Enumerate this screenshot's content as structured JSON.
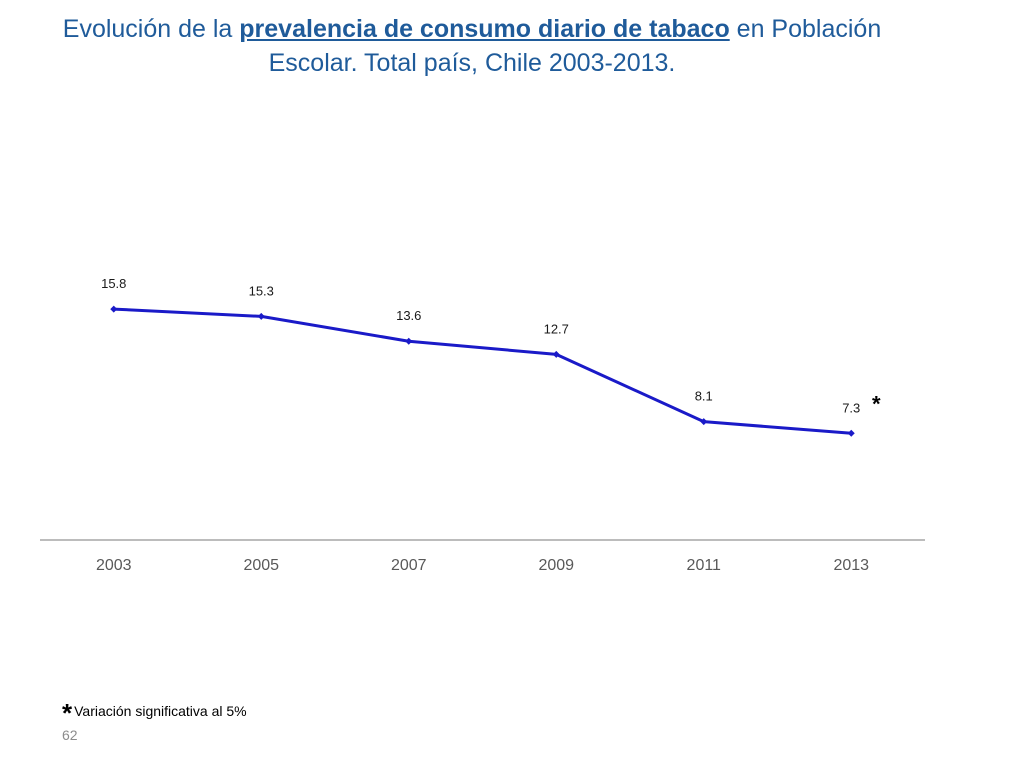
{
  "slide": {
    "title_part1": "Evolución de la ",
    "title_highlight": "prevalencia de consumo diario de tabaco",
    "title_part2": " en Población Escolar. Total país, Chile 2003-2013.",
    "footnote_star": "*",
    "footnote_text": "Variación significativa al 5%",
    "page_number": "62"
  },
  "colors": {
    "title": "#1f5b9a",
    "series": "#1a1ac8",
    "axis": "#a6a6a6",
    "tick_label": "#595959"
  },
  "chart_data": {
    "type": "line",
    "title": "Evolución de la prevalencia de consumo diario de tabaco en Población Escolar. Total país, Chile 2003-2013.",
    "categories": [
      "2003",
      "2005",
      "2007",
      "2009",
      "2011",
      "2013"
    ],
    "series": [
      {
        "name": "Prevalencia consumo diario de tabaco",
        "values": [
          15.8,
          15.3,
          13.6,
          12.7,
          8.1,
          7.3
        ]
      }
    ],
    "data_labels": [
      "15.8",
      "15.3",
      "13.6",
      "12.7",
      "8.1",
      "7.3"
    ],
    "annotations": [
      {
        "category": "2013",
        "text": "*"
      }
    ],
    "xlabel": "",
    "ylabel": "",
    "ylim": [
      0,
      23.4
    ],
    "grid": false,
    "legend": "none"
  }
}
